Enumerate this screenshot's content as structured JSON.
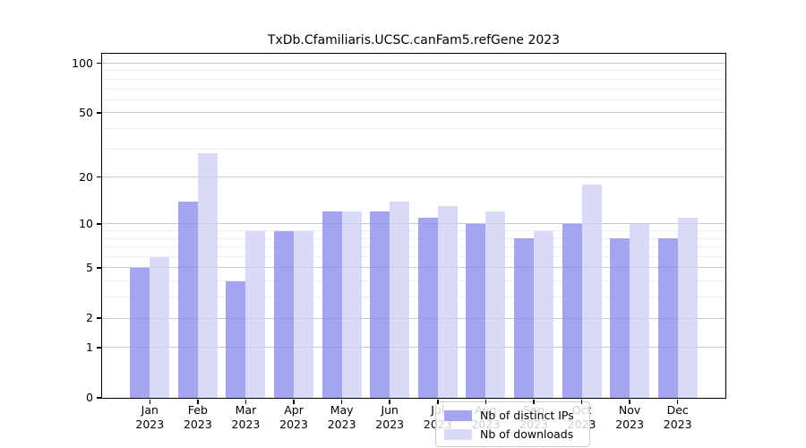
{
  "title": "TxDb.Cfamiliaris.UCSC.canFam5.refGene 2023",
  "legend": {
    "items": [
      {
        "label": "Nb of distinct IPs",
        "color": "#a5a4f0"
      },
      {
        "label": "Nb of downloads",
        "color": "#d9d9f8"
      }
    ]
  },
  "y_axis": {
    "tick_labels": [
      "100",
      "50",
      "20",
      "10",
      "5",
      "2",
      "1",
      "0"
    ]
  },
  "x_axis": {
    "year_label": "2023"
  },
  "chart_data": {
    "type": "bar",
    "title": "TxDb.Cfamiliaris.UCSC.canFam5.refGene 2023",
    "categories": [
      "Jan",
      "Feb",
      "Mar",
      "Apr",
      "May",
      "Jun",
      "Jul",
      "Aug",
      "Sep",
      "Oct",
      "Nov",
      "Dec"
    ],
    "year": "2023",
    "series": [
      {
        "name": "Nb of distinct IPs",
        "color": "#a5a4f0",
        "values": [
          5,
          14,
          4,
          9,
          12,
          12,
          11,
          10,
          8,
          10,
          8,
          8
        ]
      },
      {
        "name": "Nb of downloads",
        "color": "#d9d9f8",
        "values": [
          6,
          28,
          9,
          9,
          12,
          14,
          13,
          12,
          9,
          18,
          10,
          11
        ]
      }
    ],
    "y_scale": "log1p",
    "ylim": [
      0,
      114
    ],
    "y_major_ticks": [
      0,
      1,
      2,
      5,
      10,
      20,
      50,
      100
    ],
    "y_minor_gridlines": [
      3,
      4,
      6,
      7,
      8,
      9,
      30,
      40,
      60,
      70,
      80,
      90
    ],
    "grid": true,
    "legend_position": "bottom-center",
    "colors": {
      "major_grid": "#c9c9c9",
      "minor_grid": "#ededed",
      "axis": "#000000",
      "background": "#ffffff"
    }
  }
}
